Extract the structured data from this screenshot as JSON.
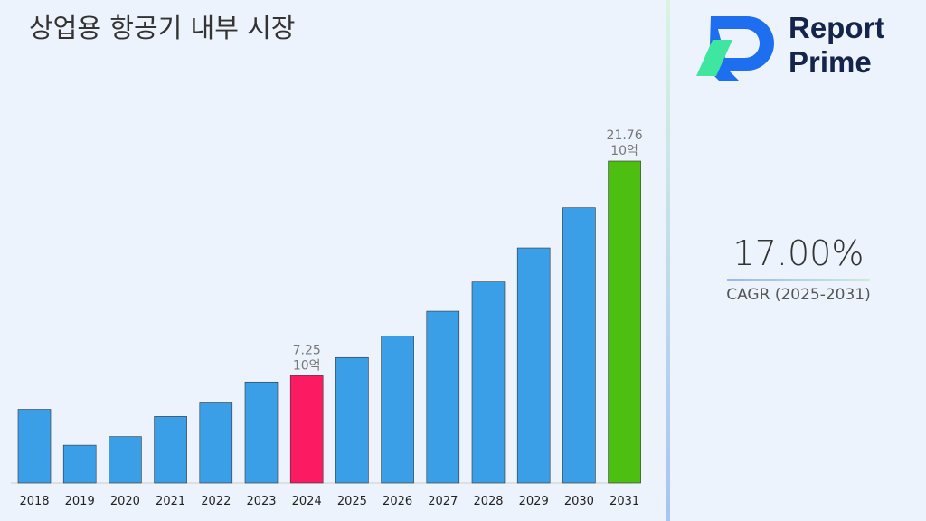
{
  "title": "상업용 항공기 내부 시장",
  "logo": {
    "line1": "Report",
    "line2": "Prime"
  },
  "cagr": {
    "value": "17.00%",
    "label": "CAGR (2025-2031)"
  },
  "colors": {
    "default": "#3a9fe6",
    "highlight_base": "#fc1a63",
    "highlight_final": "#4cbf10"
  },
  "chart_data": {
    "type": "bar",
    "categories": [
      "2018",
      "2019",
      "2020",
      "2021",
      "2022",
      "2023",
      "2024",
      "2025",
      "2026",
      "2027",
      "2028",
      "2029",
      "2030",
      "2031"
    ],
    "values": [
      4.98,
      2.56,
      3.14,
      4.5,
      5.47,
      6.83,
      7.25,
      8.48,
      9.92,
      11.61,
      13.59,
      15.89,
      18.6,
      21.76
    ],
    "unit": "10억",
    "data_labels": [
      {
        "category": "2024",
        "text": "7.25",
        "unit": "10억"
      },
      {
        "category": "2031",
        "text": "21.76",
        "unit": "10억"
      }
    ],
    "ylim": [
      0,
      21.76
    ],
    "grid": false
  }
}
